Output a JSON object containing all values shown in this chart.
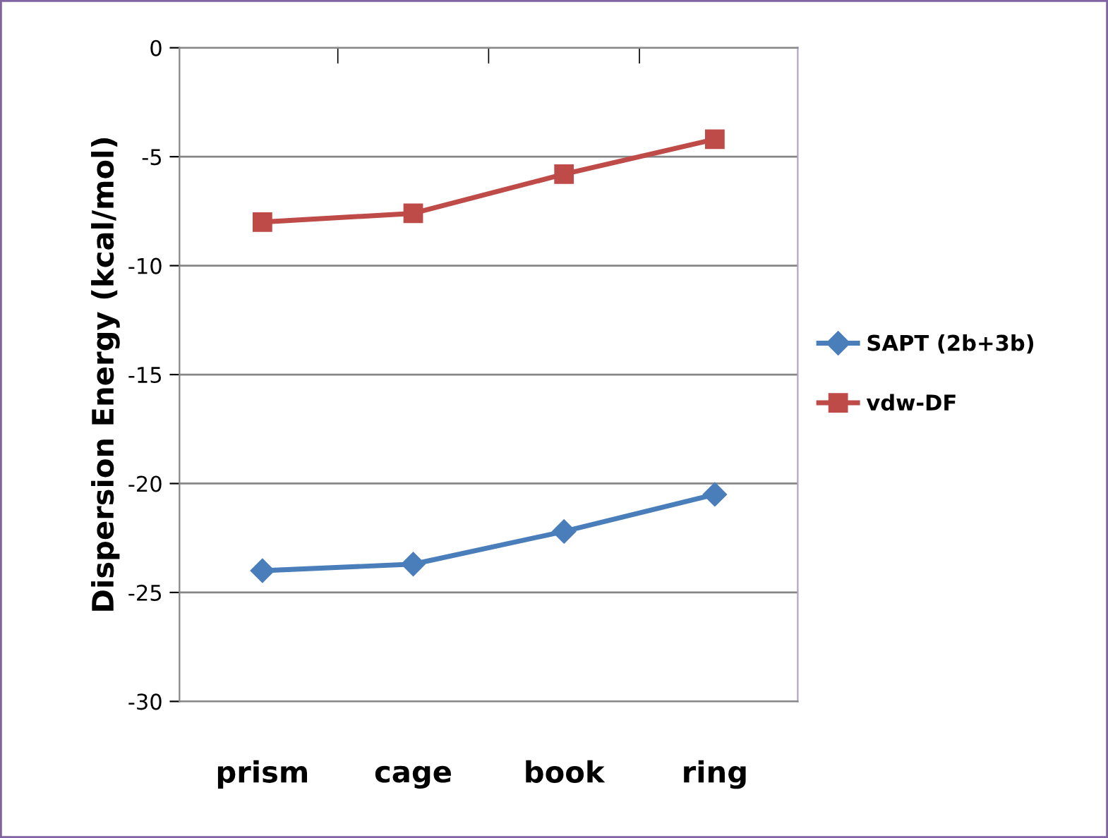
{
  "chart_data": {
    "type": "line",
    "ylabel": "Dispersion Energy (kcal/mol)",
    "categories": [
      "prism",
      "cage",
      "book",
      "ring"
    ],
    "series": [
      {
        "name": "SAPT (2b+3b)",
        "color": "#4a7ebb",
        "marker": "diamond",
        "values": [
          -24.0,
          -23.7,
          -22.2,
          -20.5
        ]
      },
      {
        "name": "vdw-DF",
        "color": "#be4b48",
        "marker": "square",
        "values": [
          -8.0,
          -7.6,
          -5.8,
          -4.2
        ]
      }
    ],
    "ylim": [
      -30,
      0
    ],
    "yticks": [
      -30,
      -25,
      -20,
      -15,
      -10,
      -5,
      0
    ],
    "grid": "y",
    "legend": "right",
    "line_style": "solid"
  }
}
